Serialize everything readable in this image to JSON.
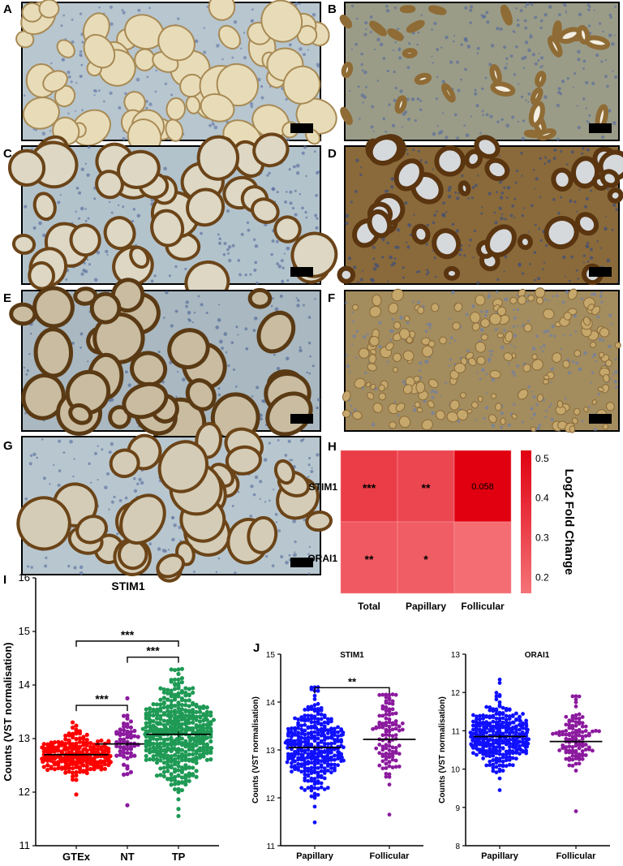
{
  "panels": {
    "A": {
      "label": "A",
      "tone": "light"
    },
    "B": {
      "label": "B",
      "tone": "papillary"
    },
    "C": {
      "label": "C",
      "tone": "ring"
    },
    "D": {
      "label": "D",
      "tone": "dense"
    },
    "E": {
      "label": "E",
      "tone": "ring-dark"
    },
    "F": {
      "label": "F",
      "tone": "oncocytic"
    },
    "G": {
      "label": "G",
      "tone": "ring-light"
    },
    "H": {
      "label": "H"
    },
    "I": {
      "label": "I"
    },
    "J": {
      "label": "J"
    }
  },
  "colors": {
    "gtex": "#ff0000",
    "nt": "#8b1a9e",
    "tp": "#1f9a55",
    "papillary": "#1010ff",
    "follicular": "#8b1a9e",
    "heat_low": "#f47378",
    "heat_high": "#e00010"
  },
  "chart_data": [
    {
      "id": "H",
      "type": "heatmap",
      "rows": [
        "STIM1",
        "ORAI1"
      ],
      "columns": [
        "Total",
        "Papillary",
        "Follicular"
      ],
      "values": [
        [
          0.33,
          0.3,
          0.52
        ],
        [
          0.24,
          0.23,
          0.18
        ]
      ],
      "cell_labels": [
        [
          "***",
          "**",
          "0.058"
        ],
        [
          "**",
          "*",
          ""
        ]
      ],
      "colorbar": {
        "label": "Log2 Fold Change",
        "range": [
          0.16,
          0.52
        ],
        "ticks": [
          "0.5",
          "0.4",
          "0.3",
          "0.2"
        ],
        "tick_values": [
          0.5,
          0.4,
          0.3,
          0.2
        ]
      }
    },
    {
      "id": "I",
      "type": "scatter",
      "title": "STIM1",
      "ylabel": "Counts (VST normalisation)",
      "categories": [
        "GTEx",
        "NT",
        "TP"
      ],
      "ylim": [
        11,
        16
      ],
      "yticks": [
        "11",
        "12",
        "13",
        "14",
        "15",
        "16"
      ],
      "ytick_values": [
        11,
        12,
        13,
        14,
        15,
        16
      ],
      "series": [
        {
          "category": "GTEx",
          "median": 12.7,
          "sd": 0.18,
          "min": 11.95,
          "max": 13.3,
          "n": 300
        },
        {
          "category": "NT",
          "median": 12.9,
          "sd": 0.3,
          "min": 11.75,
          "max": 13.75,
          "n": 59
        },
        {
          "category": "TP",
          "median": 13.08,
          "sd": 0.45,
          "min": 11.55,
          "max": 14.3,
          "n": 500
        }
      ],
      "significance": [
        {
          "from": "GTEx",
          "to": "TP",
          "y": 14.82,
          "label": "***"
        },
        {
          "from": "NT",
          "to": "TP",
          "y": 14.52,
          "label": "***"
        },
        {
          "from": "GTEx",
          "to": "NT",
          "y": 13.62,
          "label": "***"
        }
      ]
    },
    {
      "id": "J1",
      "type": "scatter",
      "title": "STIM1",
      "ylabel": "Counts (VST normalisation)",
      "categories": [
        "Papillary",
        "Follicular"
      ],
      "ylim": [
        11,
        15
      ],
      "yticks": [
        "11",
        "12",
        "13",
        "14",
        "15"
      ],
      "ytick_values": [
        11,
        12,
        13,
        14,
        15
      ],
      "series": [
        {
          "category": "Papillary",
          "median": 13.05,
          "sd": 0.45,
          "min": 11.5,
          "max": 14.3,
          "n": 360
        },
        {
          "category": "Follicular",
          "median": 13.22,
          "sd": 0.5,
          "min": 11.65,
          "max": 14.15,
          "n": 110
        }
      ],
      "significance": [
        {
          "from": "Papillary",
          "to": "Follicular",
          "y": 14.3,
          "label": "**"
        }
      ]
    },
    {
      "id": "J2",
      "type": "scatter",
      "title": "ORAI1",
      "ylabel": "Counts (VST normalisation)",
      "categories": [
        "Papillary",
        "Follicular"
      ],
      "ylim": [
        8,
        13
      ],
      "yticks": [
        "8",
        "9",
        "10",
        "11",
        "12",
        "13"
      ],
      "ytick_values": [
        8,
        9,
        10,
        11,
        12,
        13
      ],
      "series": [
        {
          "category": "Papillary",
          "median": 10.85,
          "sd": 0.4,
          "min": 9.45,
          "max": 12.35,
          "n": 360
        },
        {
          "category": "Follicular",
          "median": 10.72,
          "sd": 0.4,
          "min": 8.9,
          "max": 11.9,
          "n": 110
        }
      ],
      "significance": []
    }
  ]
}
